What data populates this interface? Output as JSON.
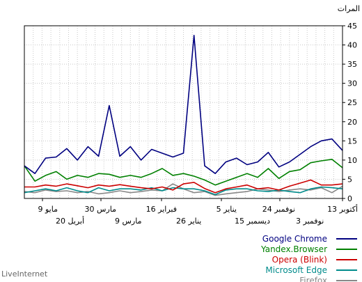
{
  "chart_data": {
    "type": "line",
    "ylabel": "المرات",
    "ylim": [
      0,
      45
    ],
    "yticks": [
      0,
      5,
      10,
      15,
      20,
      25,
      30,
      35,
      40,
      45
    ],
    "x_direction": "right-to-left",
    "x_tick_labels_upper": [
      "13 أكتوبر",
      "24 نوفمبر",
      "5 يناير",
      "16 فبراير",
      "30 مارس",
      "9 مايو"
    ],
    "x_tick_labels_lower": [
      "3 نوفمبر",
      "15 ديسمبر",
      "26 يناير",
      "9 مارس",
      "20 أبريل"
    ],
    "grid": true,
    "legend_position": "bottom-right",
    "series": [
      {
        "name": "Google Chrome",
        "color": "#000080",
        "values": [
          8.5,
          6.5,
          10.5,
          10.8,
          13,
          10,
          13.5,
          11,
          24.2,
          11,
          13.5,
          10,
          12.8,
          11.8,
          10.8,
          11.8,
          42.5,
          8.5,
          6.5,
          9.5,
          10.5,
          8.8,
          9.5,
          12,
          8.2,
          9.5,
          11.5,
          13.5,
          15,
          15.5,
          12.5
        ]
      },
      {
        "name": "Yandex.Browser",
        "color": "#008000",
        "values": [
          8.5,
          4.5,
          6,
          7,
          5,
          6,
          5.5,
          6.5,
          6.3,
          5.5,
          6,
          5.5,
          6.5,
          7.8,
          6,
          6.5,
          5.8,
          4.8,
          3.5,
          4.5,
          5.5,
          6.5,
          5.5,
          7.8,
          5.2,
          7,
          7.5,
          9.3,
          9.8,
          10.2,
          8
        ]
      },
      {
        "name": "Opera (Blink)",
        "color": "#cc0000",
        "values": [
          3,
          3,
          3.5,
          3.2,
          3.8,
          3.3,
          2.8,
          3.5,
          3.2,
          3.6,
          3.2,
          2.8,
          2.5,
          3,
          2.2,
          3.8,
          4.2,
          2.6,
          1.5,
          2.5,
          3,
          3.5,
          2.5,
          2.8,
          2.2,
          3.2,
          4,
          4.8,
          3.5,
          3.5,
          3.8
        ]
      },
      {
        "name": "Microsoft Edge",
        "color": "#008b8b",
        "values": [
          1.5,
          2,
          2.5,
          2,
          2.8,
          2,
          1.5,
          2.8,
          2,
          2.5,
          2.5,
          2.2,
          2.8,
          2,
          2.8,
          2.5,
          2.5,
          2,
          1,
          2.2,
          2.5,
          2.5,
          2,
          1.8,
          2.2,
          1.8,
          1.5,
          2.5,
          3,
          2.8,
          2.5
        ]
      },
      {
        "name": "Firefox",
        "color": "#888888",
        "values": [
          1.8,
          1.5,
          2.2,
          1.8,
          2,
          1.5,
          1.8,
          1.2,
          1.5,
          2,
          1.5,
          1.8,
          2.2,
          2,
          3.8,
          2.5,
          1.5,
          1.8,
          0.8,
          1.2,
          1.5,
          1.8,
          2.5,
          2.2,
          1.8,
          2.2,
          2.5,
          2.2,
          2.8,
          1.5,
          3.2
        ]
      }
    ]
  },
  "footer": "LiveInternet"
}
